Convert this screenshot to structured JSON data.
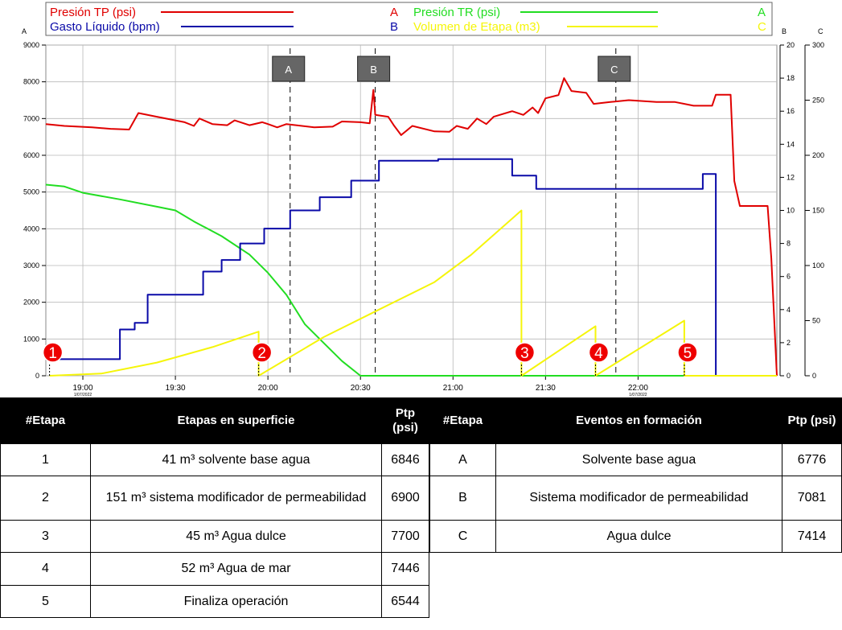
{
  "colors": {
    "red": "#e00000",
    "blue": "#0a0aa8",
    "green": "#22dd22",
    "yellow": "#f5f50a",
    "grid": "#b8b8b8",
    "marker": "#ee0000"
  },
  "chart_data": {
    "type": "line",
    "legend": [
      {
        "name": "Presión  TP (psi)",
        "axis": "A",
        "color": "#e00000"
      },
      {
        "name": "Presión TR (psi)",
        "axis": "A",
        "color": "#22dd22"
      },
      {
        "name": "Gasto Líquido (bpm)",
        "axis": "B",
        "color": "#0a0aa8"
      },
      {
        "name": "Volumen de Etapa (m3)",
        "axis": "C",
        "color": "#f5f50a"
      }
    ],
    "axes": {
      "left": {
        "label": "A",
        "min": 0,
        "max": 9000,
        "ticks": [
          0,
          1000,
          2000,
          3000,
          4000,
          5000,
          6000,
          7000,
          8000,
          9000
        ]
      },
      "right1": {
        "label": "B",
        "min": 0,
        "max": 20,
        "ticks": [
          0,
          2,
          4,
          6,
          8,
          10,
          12,
          14,
          16,
          18,
          20
        ]
      },
      "right2": {
        "label": "C",
        "min": 0,
        "max": 300,
        "ticks": [
          0,
          50,
          100,
          150,
          200,
          250,
          300
        ]
      },
      "x": {
        "min": 18.8,
        "max": 22.75,
        "ticks": [
          {
            "v": 19.0,
            "label": "19:00",
            "sub": "1/07/2022"
          },
          {
            "v": 19.5,
            "label": "19:30"
          },
          {
            "v": 20.0,
            "label": "20:00"
          },
          {
            "v": 20.5,
            "label": "20:30"
          },
          {
            "v": 21.0,
            "label": "21:00"
          },
          {
            "v": 21.5,
            "label": "21:30"
          },
          {
            "v": 22.0,
            "label": "22:00",
            "sub": "1/07/2022"
          }
        ]
      }
    },
    "events": [
      {
        "label": "A",
        "x": 20.12
      },
      {
        "label": "B",
        "x": 20.58
      },
      {
        "label": "C",
        "x": 21.88
      }
    ],
    "stage_markers": [
      {
        "label": "1",
        "x": 18.82
      },
      {
        "label": "2",
        "x": 19.95
      },
      {
        "label": "3",
        "x": 21.37
      },
      {
        "label": "4",
        "x": 21.77
      },
      {
        "label": "5",
        "x": 22.25
      }
    ],
    "series": [
      {
        "name": "Presión  TP (psi)",
        "axis": "left",
        "color": "#e00000",
        "points": [
          [
            18.8,
            6850
          ],
          [
            18.9,
            6800
          ],
          [
            19.05,
            6760
          ],
          [
            19.15,
            6720
          ],
          [
            19.25,
            6700
          ],
          [
            19.3,
            7150
          ],
          [
            19.4,
            7050
          ],
          [
            19.55,
            6900
          ],
          [
            19.6,
            6800
          ],
          [
            19.63,
            7000
          ],
          [
            19.7,
            6850
          ],
          [
            19.78,
            6820
          ],
          [
            19.82,
            6950
          ],
          [
            19.9,
            6820
          ],
          [
            19.97,
            6900
          ],
          [
            20.0,
            6850
          ],
          [
            20.05,
            6760
          ],
          [
            20.1,
            6850
          ],
          [
            20.25,
            6760
          ],
          [
            20.35,
            6780
          ],
          [
            20.4,
            6920
          ],
          [
            20.5,
            6900
          ],
          [
            20.55,
            6870
          ],
          [
            20.57,
            7780
          ],
          [
            20.58,
            7100
          ],
          [
            20.65,
            7050
          ],
          [
            20.68,
            6820
          ],
          [
            20.72,
            6550
          ],
          [
            20.78,
            6800
          ],
          [
            20.9,
            6650
          ],
          [
            20.98,
            6640
          ],
          [
            21.02,
            6800
          ],
          [
            21.08,
            6720
          ],
          [
            21.13,
            7000
          ],
          [
            21.18,
            6850
          ],
          [
            21.22,
            7050
          ],
          [
            21.32,
            7200
          ],
          [
            21.38,
            7100
          ],
          [
            21.43,
            7300
          ],
          [
            21.46,
            7150
          ],
          [
            21.5,
            7550
          ],
          [
            21.57,
            7640
          ],
          [
            21.6,
            8100
          ],
          [
            21.64,
            7750
          ],
          [
            21.72,
            7700
          ],
          [
            21.76,
            7400
          ],
          [
            21.85,
            7450
          ],
          [
            21.95,
            7500
          ],
          [
            22.1,
            7450
          ],
          [
            22.2,
            7450
          ],
          [
            22.3,
            7350
          ],
          [
            22.4,
            7350
          ],
          [
            22.42,
            7650
          ],
          [
            22.5,
            7650
          ],
          [
            22.52,
            5300
          ],
          [
            22.55,
            4620
          ],
          [
            22.7,
            4620
          ],
          [
            22.72,
            3200
          ],
          [
            22.75,
            0
          ]
        ]
      },
      {
        "name": "Presión TR (psi)",
        "axis": "left",
        "color": "#22dd22",
        "points": [
          [
            18.8,
            5200
          ],
          [
            18.9,
            5150
          ],
          [
            19.0,
            4980
          ],
          [
            19.2,
            4800
          ],
          [
            19.4,
            4600
          ],
          [
            19.5,
            4500
          ],
          [
            19.6,
            4200
          ],
          [
            19.75,
            3800
          ],
          [
            19.9,
            3300
          ],
          [
            20.0,
            2800
          ],
          [
            20.1,
            2200
          ],
          [
            20.2,
            1400
          ],
          [
            20.3,
            900
          ],
          [
            20.4,
            400
          ],
          [
            20.5,
            0
          ],
          [
            22.75,
            0
          ]
        ]
      },
      {
        "name": "Gasto Líquido (bpm)",
        "axis": "right1",
        "color": "#0a0aa8",
        "points": [
          [
            18.8,
            1
          ],
          [
            19.2,
            1
          ],
          [
            19.2,
            2.8
          ],
          [
            19.28,
            2.8
          ],
          [
            19.28,
            3.2
          ],
          [
            19.35,
            3.2
          ],
          [
            19.35,
            4.9
          ],
          [
            19.65,
            4.9
          ],
          [
            19.65,
            6.3
          ],
          [
            19.75,
            6.3
          ],
          [
            19.75,
            7.0
          ],
          [
            19.85,
            7.0
          ],
          [
            19.85,
            8.0
          ],
          [
            19.98,
            8.0
          ],
          [
            19.98,
            8.9
          ],
          [
            20.12,
            8.9
          ],
          [
            20.12,
            10.0
          ],
          [
            20.28,
            10.0
          ],
          [
            20.28,
            10.8
          ],
          [
            20.45,
            10.8
          ],
          [
            20.45,
            11.8
          ],
          [
            20.6,
            11.8
          ],
          [
            20.6,
            13.0
          ],
          [
            20.92,
            13.0
          ],
          [
            20.92,
            13.1
          ],
          [
            21.32,
            13.1
          ],
          [
            21.32,
            12.1
          ],
          [
            21.45,
            12.1
          ],
          [
            21.45,
            11.3
          ],
          [
            22.35,
            11.3
          ],
          [
            22.35,
            12.2
          ],
          [
            22.42,
            12.2
          ],
          [
            22.42,
            3.5
          ],
          [
            22.42,
            0
          ],
          [
            22.75,
            0
          ]
        ]
      },
      {
        "name": "Volumen de Etapa (m3)",
        "axis": "right2",
        "color": "#f5f50a",
        "points": [
          [
            18.82,
            0
          ],
          [
            19.1,
            2
          ],
          [
            19.4,
            12
          ],
          [
            19.7,
            26
          ],
          [
            19.95,
            40
          ],
          [
            19.95,
            0
          ],
          [
            20.3,
            35
          ],
          [
            20.6,
            60
          ],
          [
            20.9,
            85
          ],
          [
            21.1,
            110
          ],
          [
            21.37,
            150
          ],
          [
            21.37,
            0
          ],
          [
            21.77,
            45
          ],
          [
            21.77,
            0
          ],
          [
            22.25,
            50
          ],
          [
            22.25,
            0
          ],
          [
            22.75,
            0
          ]
        ]
      }
    ]
  },
  "table1": {
    "headers": [
      "#Etapa",
      "Etapas en superficie",
      "Ptp (psi)"
    ],
    "rows": [
      [
        "1",
        "41 m³ solvente base agua",
        "6846"
      ],
      [
        "2",
        "151 m³ sistema modificador de permeabilidad",
        "6900"
      ],
      [
        "3",
        "45 m³ Agua dulce",
        "7700"
      ],
      [
        "4",
        "52 m³ Agua de mar",
        "7446"
      ],
      [
        "5",
        "Finaliza operación",
        "6544"
      ]
    ]
  },
  "table2": {
    "headers": [
      "#Etapa",
      "Eventos en formación",
      "Ptp (psi)"
    ],
    "rows": [
      [
        "A",
        "Solvente base agua",
        "6776"
      ],
      [
        "B",
        "Sistema modificador de permeabilidad",
        "7081"
      ],
      [
        "C",
        "Agua dulce",
        "7414"
      ]
    ]
  }
}
